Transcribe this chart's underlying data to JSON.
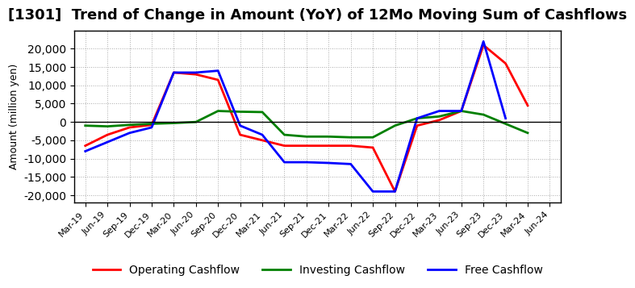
{
  "title": "[1301]  Trend of Change in Amount (YoY) of 12Mo Moving Sum of Cashflows",
  "ylabel": "Amount (million yen)",
  "x_labels": [
    "Mar-19",
    "Jun-19",
    "Sep-19",
    "Dec-19",
    "Mar-20",
    "Jun-20",
    "Sep-20",
    "Dec-20",
    "Mar-21",
    "Jun-21",
    "Sep-21",
    "Dec-21",
    "Mar-22",
    "Jun-22",
    "Sep-22",
    "Dec-22",
    "Mar-23",
    "Jun-23",
    "Sep-23",
    "Dec-23",
    "Mar-24",
    "Jun-24"
  ],
  "operating": [
    -6500,
    -3500,
    -1500,
    -800,
    13500,
    13000,
    11500,
    -3500,
    -5000,
    -6500,
    -6500,
    -6500,
    -6500,
    -7000,
    -19000,
    -1000,
    500,
    3000,
    21000,
    16000,
    4500,
    null
  ],
  "investing": [
    -1000,
    -1200,
    -800,
    -500,
    -300,
    0,
    3000,
    2800,
    2700,
    -3500,
    -4000,
    -4000,
    -4200,
    -4200,
    -1000,
    1000,
    1500,
    3000,
    2000,
    -500,
    -3000,
    null
  ],
  "free": [
    -8000,
    -5500,
    -3000,
    -1500,
    13500,
    13500,
    14000,
    -1000,
    -3500,
    -11000,
    -11000,
    -11200,
    -11500,
    -19000,
    -19000,
    1000,
    3000,
    3000,
    22000,
    1000,
    null,
    null
  ],
  "ylim": [
    -22000,
    25000
  ],
  "yticks": [
    -20000,
    -15000,
    -10000,
    -5000,
    0,
    5000,
    10000,
    15000,
    20000
  ],
  "operating_color": "#ff0000",
  "investing_color": "#008000",
  "free_color": "#0000ff",
  "bg_color": "#ffffff",
  "grid_color": "#aaaaaa",
  "title_fontsize": 13,
  "legend_fontsize": 10
}
